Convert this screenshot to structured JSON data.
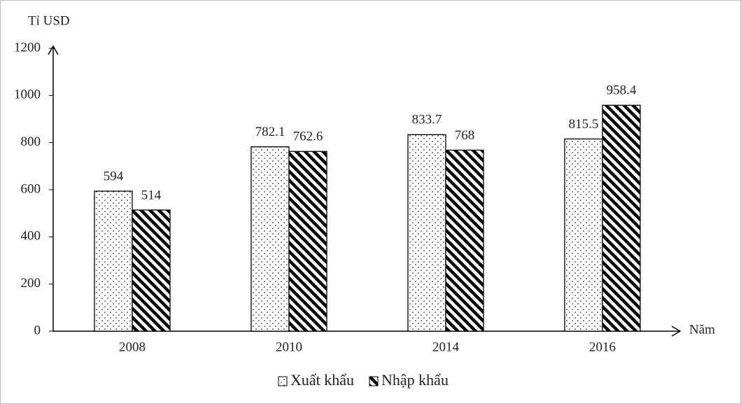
{
  "chart_data": {
    "type": "bar",
    "y_label": "Tỉ USD",
    "x_label": "Năm",
    "categories": [
      "2008",
      "2010",
      "2014",
      "2016"
    ],
    "series": [
      {
        "name": "Xuất khẩu",
        "pattern": "dots",
        "color": "#000000",
        "values": [
          594,
          782.1,
          833.7,
          815.5
        ]
      },
      {
        "name": "Nhập khẩu",
        "pattern": "hatch",
        "color": "#000000",
        "values": [
          514,
          762.6,
          768,
          958.4
        ]
      }
    ],
    "ylim": [
      0,
      1200
    ],
    "yticks": [
      0,
      200,
      400,
      600,
      800,
      1000,
      1200
    ],
    "grid": false,
    "legend": "bottom"
  }
}
